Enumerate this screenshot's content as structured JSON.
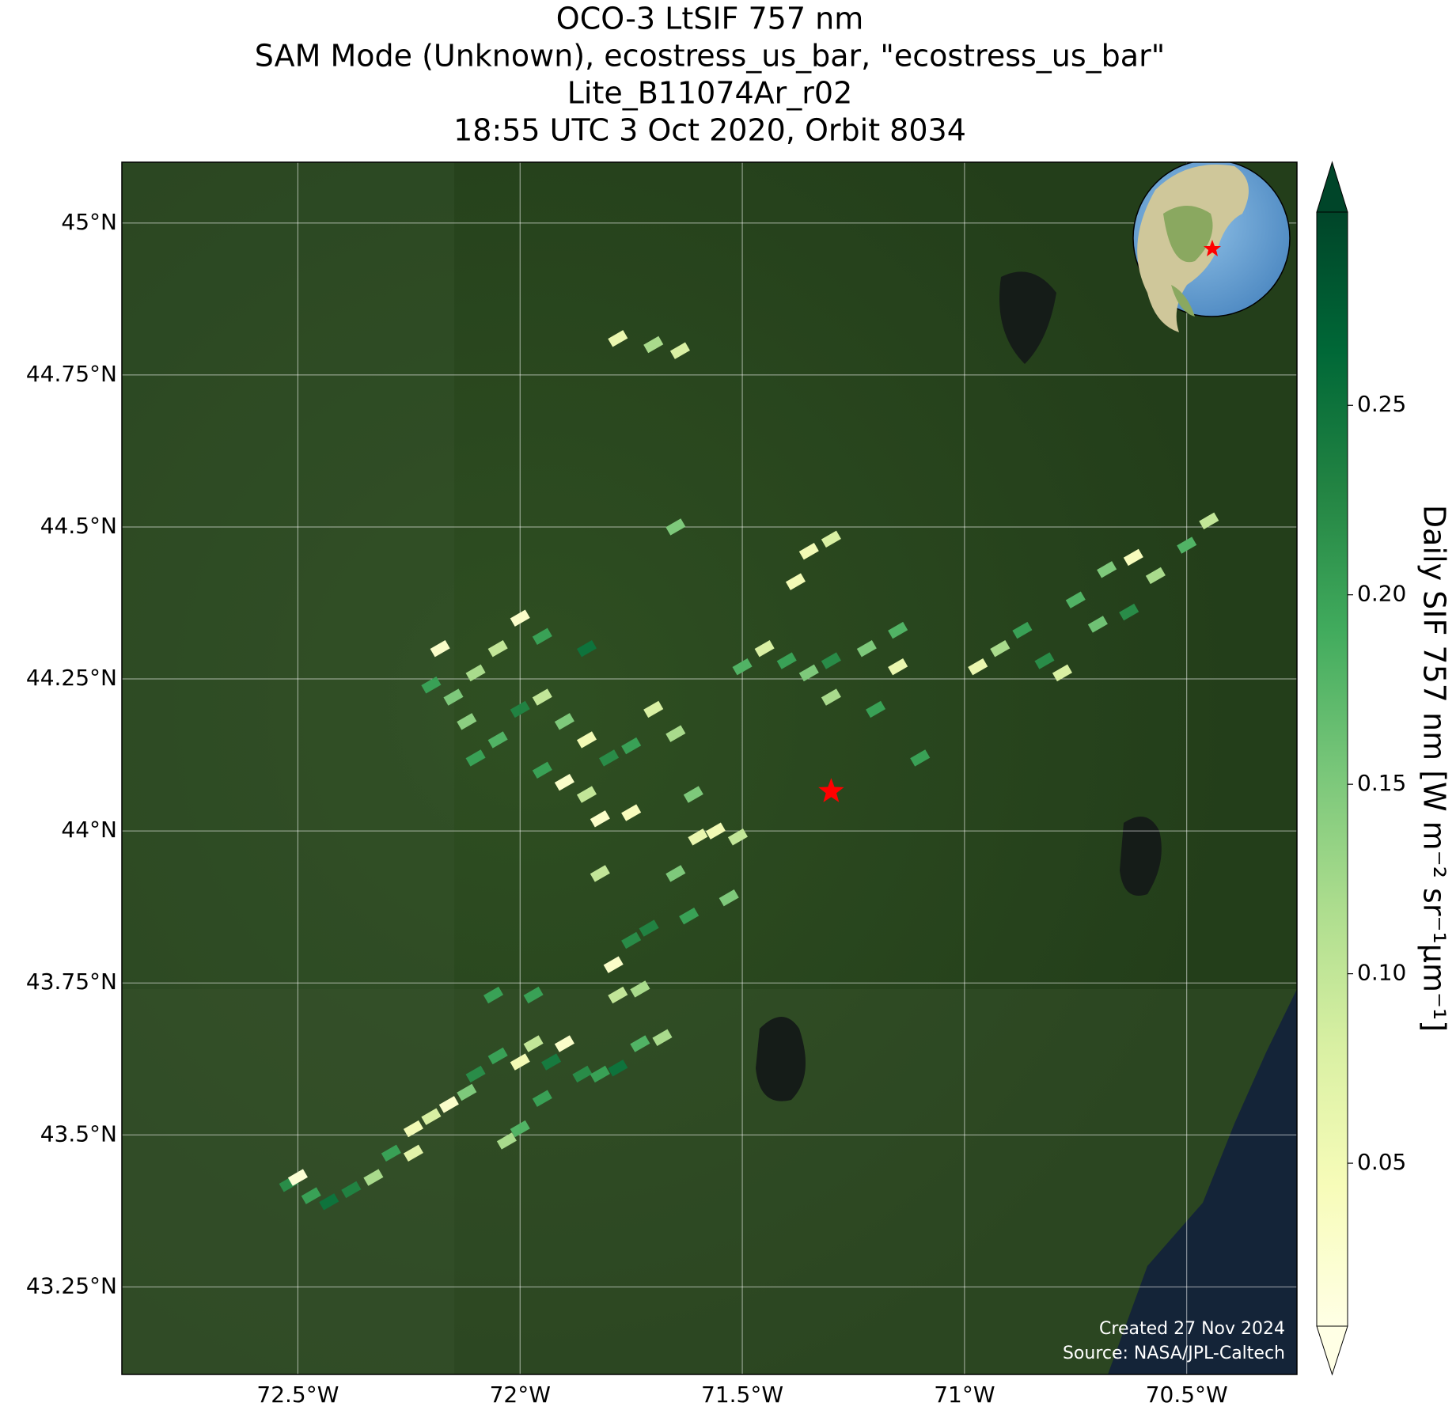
{
  "map": {
    "title": [
      "OCO-3 LtSIF 757 nm",
      "SAM Mode (Unknown), ecostress_us_bar, \"ecostress_us_bar\"",
      "Lite_B11074Ar_r02",
      "18:55 UTC 3 Oct 2020, Orbit 8034"
    ],
    "xlim": [
      -72.896,
      -70.252
    ],
    "ylim": [
      43.106,
      45.1
    ],
    "xticks": [
      {
        "value": -72.5,
        "label": "72.5°W"
      },
      {
        "value": -72,
        "label": "72°W"
      },
      {
        "value": -71.5,
        "label": "71.5°W"
      },
      {
        "value": -71,
        "label": "71°W"
      },
      {
        "value": -70.5,
        "label": "70.5°W"
      }
    ],
    "yticks": [
      {
        "value": 43.25,
        "label": "43.25°N"
      },
      {
        "value": 43.5,
        "label": "43.5°N"
      },
      {
        "value": 43.75,
        "label": "43.75°N"
      },
      {
        "value": 44,
        "label": "44°N"
      },
      {
        "value": 44.25,
        "label": "44.25°N"
      },
      {
        "value": 44.5,
        "label": "44.5°N"
      },
      {
        "value": 44.75,
        "label": "44.75°N"
      },
      {
        "value": 45,
        "label": "45°N"
      }
    ],
    "grid": true,
    "colorbar": {
      "label": "Daily SIF 757 nm [W m⁻² sr⁻¹μm⁻¹]",
      "lim": [
        0.007,
        0.301
      ],
      "ticks": [
        0.05,
        {
          "value": 0.1,
          "label": "0.10"
        },
        0.15,
        {
          "value": 0.2,
          "label": "0.20"
        },
        0.25
      ],
      "colormap": [
        "#ffffe5",
        "#f7fcb9",
        "#d9f0a3",
        "#addd8e",
        "#78c679",
        "#41ab5d",
        "#238443",
        "#006837",
        "#004529"
      ]
    },
    "soundings": {
      "lon": [
        -72.52,
        -72.5,
        -72.47,
        -72.43,
        -72.38,
        -72.33,
        -72.29,
        -72.24,
        -72.2,
        -72.16,
        -72.12,
        -72.24,
        -72.03,
        -72.0,
        -72.1,
        -72.05,
        -72.0,
        -71.97,
        -71.93,
        -71.9,
        -71.86,
        -71.82,
        -71.78,
        -71.73,
        -71.68,
        -71.95,
        -72.06,
        -71.97,
        -71.79,
        -71.78,
        -71.73,
        -71.75,
        -71.71,
        -71.62,
        -71.65,
        -71.53,
        -71.82,
        -71.6,
        -71.56,
        -71.51,
        -71.75,
        -71.61,
        -72.2,
        -72.15,
        -72.1,
        -72.05,
        -72.0,
        -71.95,
        -71.9,
        -71.85,
        -71.8,
        -71.75,
        -71.7,
        -71.65,
        -71.95,
        -71.9,
        -71.85,
        -72.05,
        -72.12,
        -71.95,
        -72.0,
        -71.85,
        -72.18,
        -72.1,
        -71.82,
        -71.45,
        -71.4,
        -71.35,
        -71.3,
        -71.22,
        -71.15,
        -71.15,
        -71.2,
        -71.3,
        -71.35,
        -71.3,
        -71.38,
        -71.5,
        -71.1,
        -71.65,
        -71.7,
        -71.64,
        -71.78,
        -70.97,
        -70.92,
        -70.87,
        -70.82,
        -70.75,
        -70.68,
        -70.62,
        -70.57,
        -70.5,
        -70.45,
        -70.78,
        -70.63,
        -70.7
      ],
      "lat": [
        43.42,
        43.43,
        43.4,
        43.39,
        43.41,
        43.43,
        43.47,
        43.51,
        43.53,
        43.55,
        43.57,
        43.47,
        43.49,
        43.51,
        43.6,
        43.63,
        43.62,
        43.65,
        43.62,
        43.65,
        43.6,
        43.6,
        43.61,
        43.65,
        43.66,
        43.56,
        43.73,
        43.73,
        43.78,
        43.73,
        43.74,
        43.82,
        43.84,
        43.86,
        43.93,
        43.89,
        43.93,
        43.99,
        44.0,
        43.99,
        44.03,
        44.06,
        44.24,
        44.22,
        44.26,
        44.3,
        44.2,
        44.22,
        44.18,
        44.15,
        44.12,
        44.14,
        44.2,
        44.16,
        44.1,
        44.08,
        44.06,
        44.15,
        44.18,
        44.32,
        44.35,
        44.3,
        44.3,
        44.12,
        44.02,
        44.3,
        44.28,
        44.26,
        44.28,
        44.3,
        44.33,
        44.27,
        44.2,
        44.22,
        44.46,
        44.48,
        44.41,
        44.27,
        44.12,
        44.5,
        44.8,
        44.79,
        44.81,
        44.27,
        44.3,
        44.33,
        44.28,
        44.38,
        44.43,
        44.45,
        44.42,
        44.47,
        44.51,
        44.26,
        44.36,
        44.34
      ],
      "values": [
        0.22,
        0.02,
        0.2,
        0.25,
        0.23,
        0.12,
        0.2,
        0.05,
        0.08,
        0.03,
        0.15,
        0.07,
        0.12,
        0.18,
        0.22,
        0.2,
        0.05,
        0.1,
        0.24,
        0.03,
        0.22,
        0.2,
        0.25,
        0.18,
        0.12,
        0.2,
        0.2,
        0.2,
        0.03,
        0.1,
        0.12,
        0.22,
        0.23,
        0.2,
        0.15,
        0.15,
        0.1,
        0.06,
        0.05,
        0.1,
        0.04,
        0.15,
        0.2,
        0.15,
        0.12,
        0.1,
        0.23,
        0.1,
        0.15,
        0.05,
        0.22,
        0.2,
        0.08,
        0.12,
        0.2,
        0.03,
        0.1,
        0.18,
        0.14,
        0.2,
        0.03,
        0.25,
        0.03,
        0.2,
        0.03,
        0.08,
        0.2,
        0.15,
        0.22,
        0.15,
        0.18,
        0.06,
        0.2,
        0.12,
        0.05,
        0.08,
        0.05,
        0.18,
        0.2,
        0.15,
        0.12,
        0.08,
        0.06,
        0.06,
        0.12,
        0.2,
        0.22,
        0.18,
        0.15,
        0.04,
        0.12,
        0.18,
        0.1,
        0.08,
        0.22,
        0.16
      ]
    },
    "target": {
      "lon": -71.3,
      "lat": 44.065
    },
    "credits": [
      "Created 27 Nov 2024",
      "Source: NASA/JPL-Caltech"
    ]
  }
}
